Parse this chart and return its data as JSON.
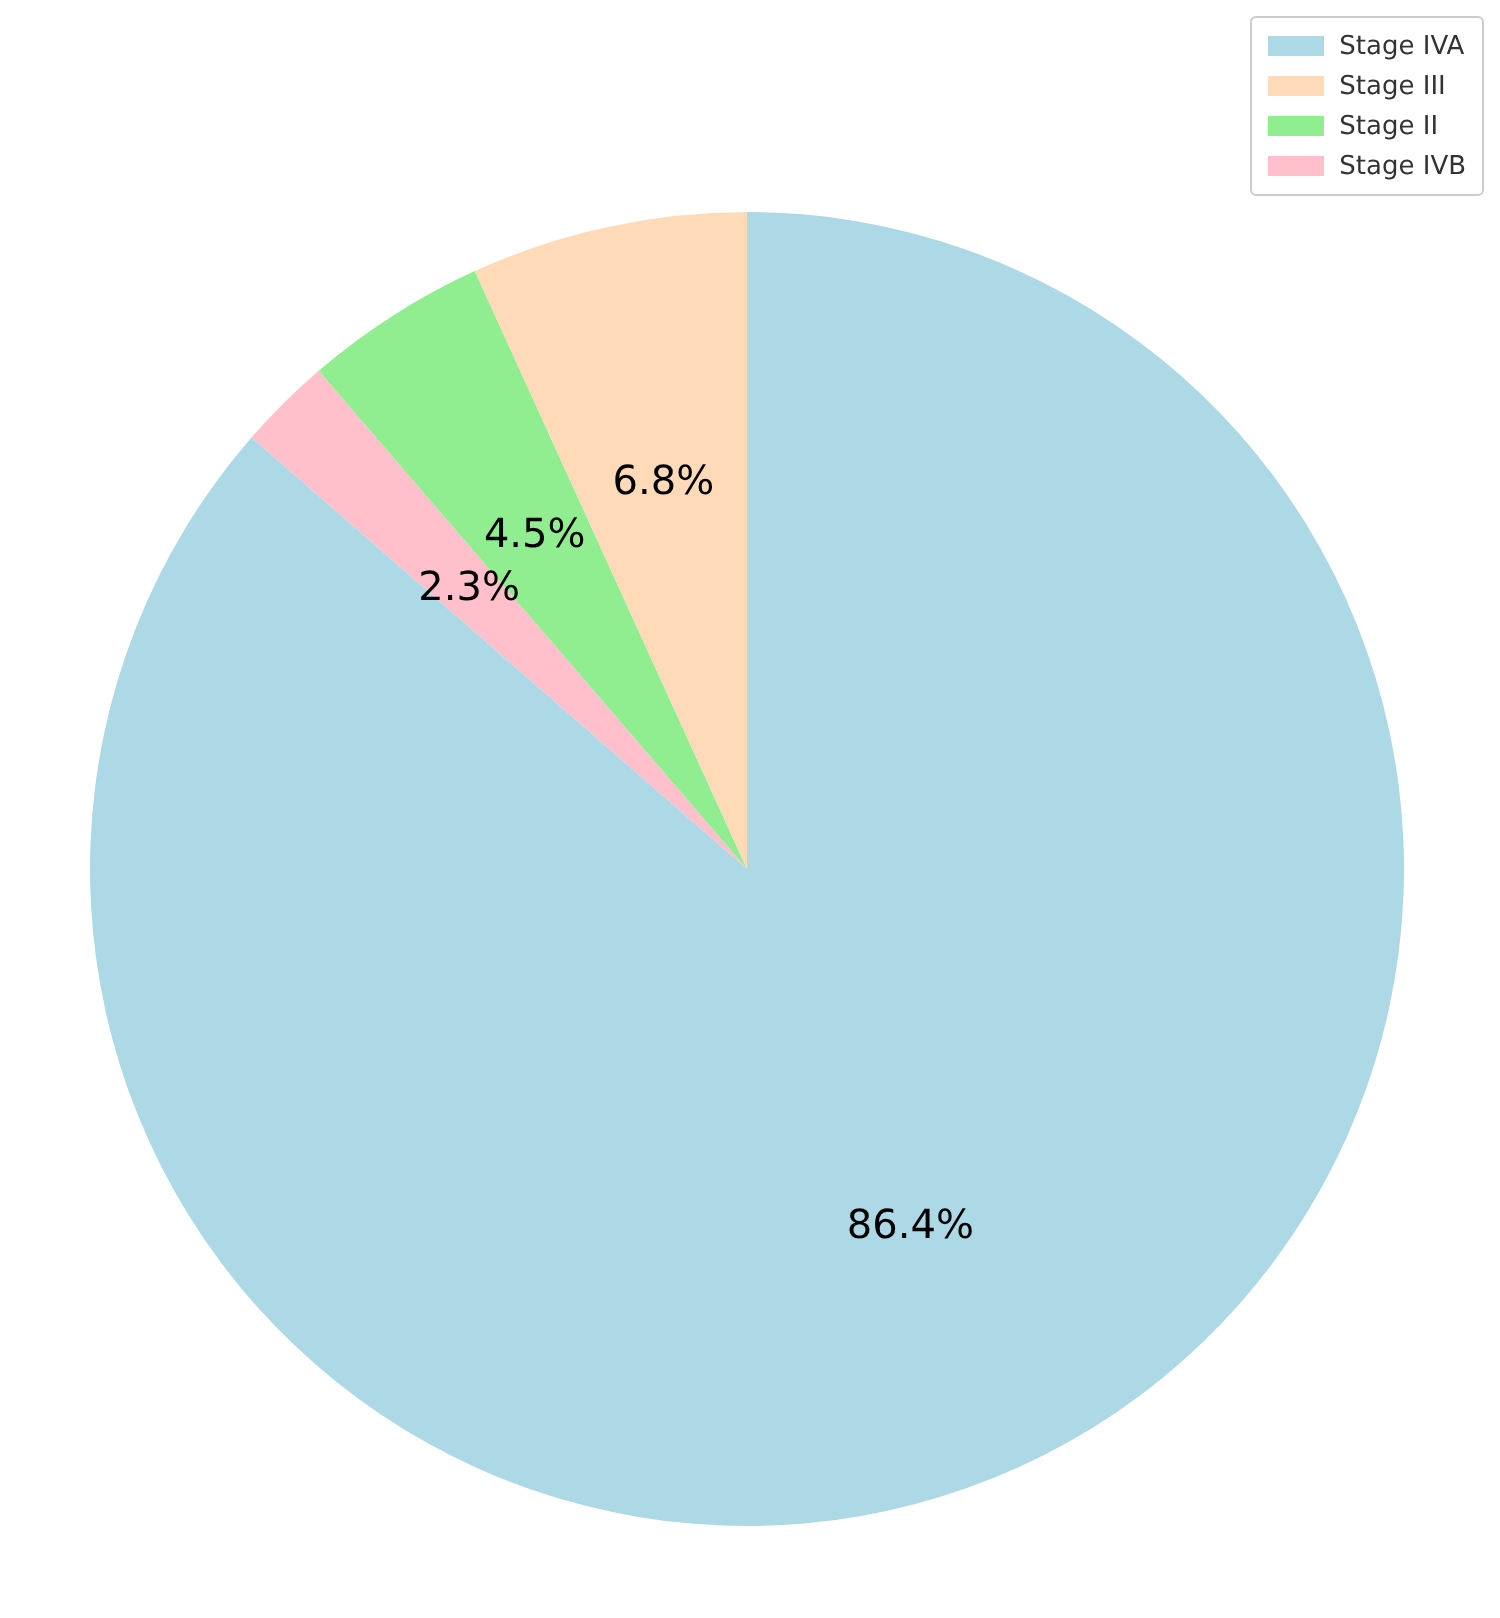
{
  "chart_data": {
    "type": "pie",
    "categories": [
      "Stage IVA",
      "Stage III",
      "Stage II",
      "Stage IVB"
    ],
    "values": [
      86.4,
      6.8,
      4.5,
      2.3
    ],
    "colors": [
      "#add8e6",
      "#ffdab9",
      "#90ee90",
      "#ffc0cb"
    ],
    "value_labels": [
      "86.4%",
      "6.8%",
      "4.5%",
      "2.3%"
    ],
    "legend": "top right"
  }
}
